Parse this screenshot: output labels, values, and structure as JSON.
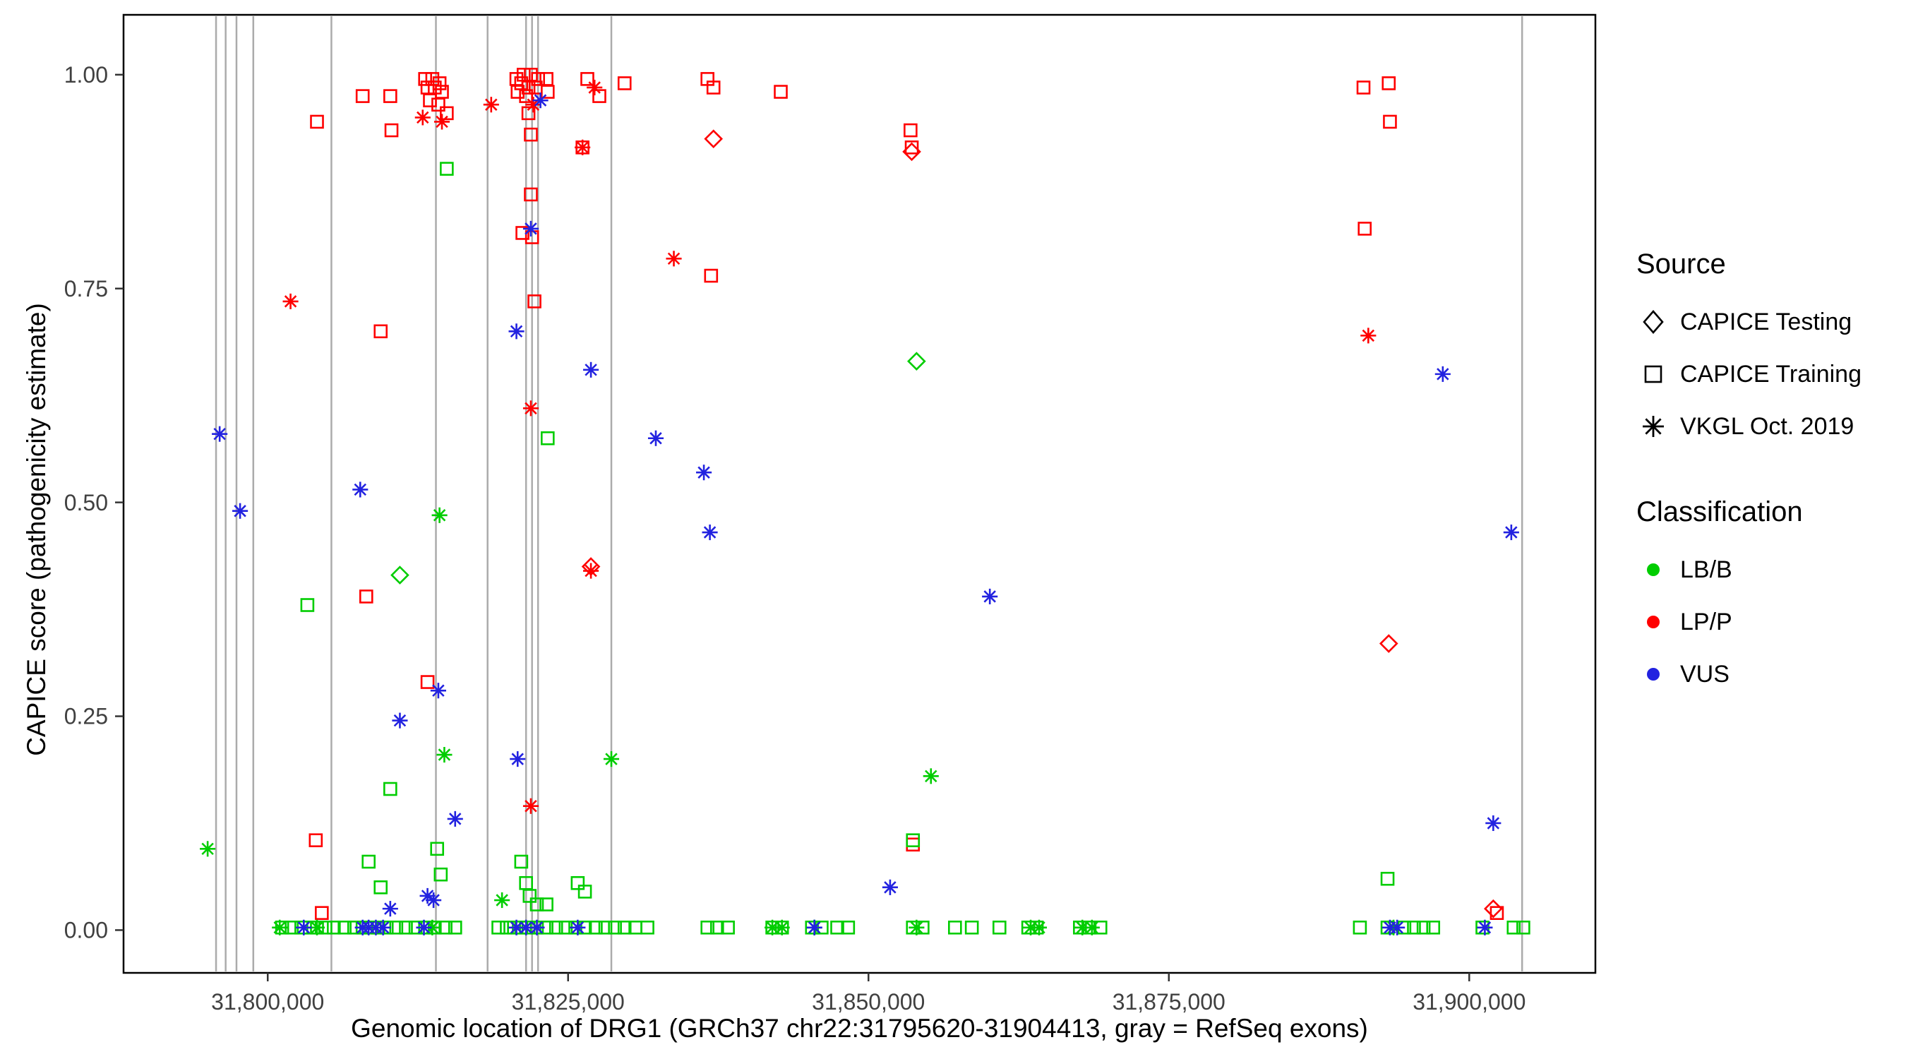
{
  "legend": {
    "source": {
      "title": "Source",
      "items": [
        {
          "label": "CAPICE Testing",
          "shape": "diamond"
        },
        {
          "label": "CAPICE Training",
          "shape": "square"
        },
        {
          "label": "VKGL Oct. 2019",
          "shape": "asterisk"
        }
      ]
    },
    "classification": {
      "title": "Classification",
      "items": [
        {
          "label": "LB/B",
          "color": "#00CD00"
        },
        {
          "label": "LP/P",
          "color": "#FF0000"
        },
        {
          "label": "VUS",
          "color": "#2222E0"
        }
      ]
    }
  },
  "chart_data": {
    "type": "scatter",
    "title": "",
    "xlabel": "Genomic location of DRG1 (GRCh37 chr22:31795620-31904413, gray = RefSeq exons)",
    "ylabel": "CAPICE score (pathogenicity estimate)",
    "xlim": [
      31788000,
      31910500
    ],
    "ylim": [
      -0.05,
      1.07
    ],
    "grid": false,
    "legend_position": "right",
    "x_ticks": [
      {
        "value": 31800000,
        "label": "31,800,000"
      },
      {
        "value": 31825000,
        "label": "31,825,000"
      },
      {
        "value": 31850000,
        "label": "31,850,000"
      },
      {
        "value": 31875000,
        "label": "31,875,000"
      },
      {
        "value": 31900000,
        "label": "31,900,000"
      }
    ],
    "y_ticks": [
      {
        "value": 0.0,
        "label": "0.00"
      },
      {
        "value": 0.25,
        "label": "0.25"
      },
      {
        "value": 0.5,
        "label": "0.50"
      },
      {
        "value": 0.75,
        "label": "0.75"
      },
      {
        "value": 1.0,
        "label": "1.00"
      }
    ],
    "exon_color": "#ABABAB",
    "exons": [
      31795700,
      31796500,
      31797400,
      31798800,
      31805300,
      31814000,
      31818300,
      31821500,
      31822000,
      31822500,
      31828600,
      31904400
    ],
    "classification_codes": {
      "B": "LB/B",
      "P": "LP/P",
      "V": "VUS"
    },
    "source_codes": {
      "d": "CAPICE Testing",
      "s": "CAPICE Training",
      "a": "VKGL Oct. 2019"
    },
    "colors": {
      "B": "#00CD00",
      "P": "#FF0000",
      "V": "#2222E0"
    },
    "shapes": {
      "d": "diamond",
      "s": "square",
      "a": "asterisk"
    },
    "point_format": [
      "x",
      "y",
      "classification_code",
      "source_code"
    ],
    "points": [
      [
        31804100,
        0.945,
        "P",
        "s"
      ],
      [
        31807900,
        0.975,
        "P",
        "s"
      ],
      [
        31810200,
        0.975,
        "P",
        "s"
      ],
      [
        31810300,
        0.935,
        "P",
        "s"
      ],
      [
        31813100,
        0.995,
        "P",
        "s"
      ],
      [
        31813700,
        0.995,
        "P",
        "s"
      ],
      [
        31814300,
        0.99,
        "P",
        "s"
      ],
      [
        31813300,
        0.985,
        "P",
        "s"
      ],
      [
        31813900,
        0.985,
        "P",
        "s"
      ],
      [
        31814500,
        0.98,
        "P",
        "s"
      ],
      [
        31813500,
        0.97,
        "P",
        "s"
      ],
      [
        31814200,
        0.965,
        "P",
        "s"
      ],
      [
        31814900,
        0.955,
        "P",
        "s"
      ],
      [
        31820700,
        0.995,
        "P",
        "s"
      ],
      [
        31821300,
        1.0,
        "P",
        "s"
      ],
      [
        31821900,
        1.0,
        "P",
        "s"
      ],
      [
        31822500,
        0.995,
        "P",
        "s"
      ],
      [
        31823200,
        0.995,
        "P",
        "s"
      ],
      [
        31821100,
        0.99,
        "P",
        "s"
      ],
      [
        31821700,
        0.985,
        "P",
        "s"
      ],
      [
        31822300,
        0.985,
        "P",
        "s"
      ],
      [
        31820800,
        0.98,
        "P",
        "s"
      ],
      [
        31821500,
        0.975,
        "P",
        "s"
      ],
      [
        31823300,
        0.98,
        "P",
        "s"
      ],
      [
        31821700,
        0.955,
        "P",
        "s"
      ],
      [
        31821900,
        0.93,
        "P",
        "s"
      ],
      [
        31821900,
        0.86,
        "P",
        "s"
      ],
      [
        31821200,
        0.815,
        "P",
        "s"
      ],
      [
        31822000,
        0.81,
        "P",
        "s"
      ],
      [
        31822200,
        0.735,
        "P",
        "s"
      ],
      [
        31826200,
        0.915,
        "P",
        "s"
      ],
      [
        31826600,
        0.995,
        "P",
        "s"
      ],
      [
        31827600,
        0.975,
        "P",
        "s"
      ],
      [
        31829700,
        0.99,
        "P",
        "s"
      ],
      [
        31836600,
        0.995,
        "P",
        "s"
      ],
      [
        31837100,
        0.985,
        "P",
        "s"
      ],
      [
        31836900,
        0.765,
        "P",
        "s"
      ],
      [
        31842700,
        0.98,
        "P",
        "s"
      ],
      [
        31853500,
        0.935,
        "P",
        "s"
      ],
      [
        31853600,
        0.915,
        "P",
        "s"
      ],
      [
        31891200,
        0.985,
        "P",
        "s"
      ],
      [
        31893300,
        0.99,
        "P",
        "s"
      ],
      [
        31893400,
        0.945,
        "P",
        "s"
      ],
      [
        31891300,
        0.82,
        "P",
        "s"
      ],
      [
        31809400,
        0.7,
        "P",
        "s"
      ],
      [
        31808200,
        0.39,
        "P",
        "s"
      ],
      [
        31813300,
        0.29,
        "P",
        "s"
      ],
      [
        31804000,
        0.105,
        "P",
        "s"
      ],
      [
        31804500,
        0.02,
        "P",
        "s"
      ],
      [
        31853700,
        0.1,
        "P",
        "s"
      ],
      [
        31902300,
        0.02,
        "P",
        "s"
      ],
      [
        31837100,
        0.925,
        "P",
        "d"
      ],
      [
        31853600,
        0.91,
        "P",
        "d"
      ],
      [
        31826900,
        0.425,
        "P",
        "d"
      ],
      [
        31893300,
        0.335,
        "P",
        "d"
      ],
      [
        31902000,
        0.025,
        "P",
        "d"
      ],
      [
        31801900,
        0.735,
        "P",
        "a"
      ],
      [
        31812900,
        0.95,
        "P",
        "a"
      ],
      [
        31814500,
        0.945,
        "P",
        "a"
      ],
      [
        31818600,
        0.965,
        "P",
        "a"
      ],
      [
        31822100,
        0.965,
        "P",
        "a"
      ],
      [
        31826200,
        0.915,
        "P",
        "a"
      ],
      [
        31827200,
        0.985,
        "P",
        "a"
      ],
      [
        31833800,
        0.785,
        "P",
        "a"
      ],
      [
        31821900,
        0.61,
        "P",
        "a"
      ],
      [
        31826900,
        0.42,
        "P",
        "a"
      ],
      [
        31821900,
        0.145,
        "P",
        "a"
      ],
      [
        31891600,
        0.695,
        "P",
        "a"
      ],
      [
        31814900,
        0.89,
        "B",
        "s"
      ],
      [
        31823300,
        0.575,
        "B",
        "s"
      ],
      [
        31803300,
        0.38,
        "B",
        "s"
      ],
      [
        31810200,
        0.165,
        "B",
        "s"
      ],
      [
        31808400,
        0.08,
        "B",
        "s"
      ],
      [
        31809400,
        0.05,
        "B",
        "s"
      ],
      [
        31814100,
        0.095,
        "B",
        "s"
      ],
      [
        31814400,
        0.065,
        "B",
        "s"
      ],
      [
        31821100,
        0.08,
        "B",
        "s"
      ],
      [
        31821500,
        0.055,
        "B",
        "s"
      ],
      [
        31821800,
        0.04,
        "B",
        "s"
      ],
      [
        31822400,
        0.03,
        "B",
        "s"
      ],
      [
        31823200,
        0.03,
        "B",
        "s"
      ],
      [
        31825800,
        0.055,
        "B",
        "s"
      ],
      [
        31826400,
        0.045,
        "B",
        "s"
      ],
      [
        31853700,
        0.105,
        "B",
        "s"
      ],
      [
        31893200,
        0.06,
        "B",
        "s"
      ],
      [
        31801200,
        0.003,
        "B",
        "s"
      ],
      [
        31802000,
        0.003,
        "B",
        "s"
      ],
      [
        31802800,
        0.003,
        "B",
        "s"
      ],
      [
        31803500,
        0.003,
        "B",
        "s"
      ],
      [
        31804100,
        0.003,
        "B",
        "s"
      ],
      [
        31804800,
        0.003,
        "B",
        "s"
      ],
      [
        31805500,
        0.003,
        "B",
        "s"
      ],
      [
        31806400,
        0.003,
        "B",
        "s"
      ],
      [
        31807200,
        0.003,
        "B",
        "s"
      ],
      [
        31807900,
        0.003,
        "B",
        "s"
      ],
      [
        31808600,
        0.003,
        "B",
        "s"
      ],
      [
        31809200,
        0.003,
        "B",
        "s"
      ],
      [
        31809900,
        0.003,
        "B",
        "s"
      ],
      [
        31810700,
        0.003,
        "B",
        "s"
      ],
      [
        31811500,
        0.003,
        "B",
        "s"
      ],
      [
        31812300,
        0.003,
        "B",
        "s"
      ],
      [
        31813100,
        0.003,
        "B",
        "s"
      ],
      [
        31813900,
        0.003,
        "B",
        "s"
      ],
      [
        31814800,
        0.003,
        "B",
        "s"
      ],
      [
        31815600,
        0.003,
        "B",
        "s"
      ],
      [
        31819200,
        0.003,
        "B",
        "s"
      ],
      [
        31819900,
        0.003,
        "B",
        "s"
      ],
      [
        31820500,
        0.003,
        "B",
        "s"
      ],
      [
        31821100,
        0.003,
        "B",
        "s"
      ],
      [
        31821700,
        0.003,
        "B",
        "s"
      ],
      [
        31822400,
        0.003,
        "B",
        "s"
      ],
      [
        31823200,
        0.003,
        "B",
        "s"
      ],
      [
        31824000,
        0.003,
        "B",
        "s"
      ],
      [
        31824800,
        0.003,
        "B",
        "s"
      ],
      [
        31825600,
        0.003,
        "B",
        "s"
      ],
      [
        31826400,
        0.003,
        "B",
        "s"
      ],
      [
        31827300,
        0.003,
        "B",
        "s"
      ],
      [
        31828100,
        0.003,
        "B",
        "s"
      ],
      [
        31828900,
        0.003,
        "B",
        "s"
      ],
      [
        31829700,
        0.003,
        "B",
        "s"
      ],
      [
        31830600,
        0.003,
        "B",
        "s"
      ],
      [
        31831600,
        0.003,
        "B",
        "s"
      ],
      [
        31836600,
        0.003,
        "B",
        "s"
      ],
      [
        31837400,
        0.003,
        "B",
        "s"
      ],
      [
        31838300,
        0.003,
        "B",
        "s"
      ],
      [
        31842000,
        0.003,
        "B",
        "s"
      ],
      [
        31842800,
        0.003,
        "B",
        "s"
      ],
      [
        31845300,
        0.003,
        "B",
        "s"
      ],
      [
        31846100,
        0.003,
        "B",
        "s"
      ],
      [
        31847400,
        0.003,
        "B",
        "s"
      ],
      [
        31848300,
        0.003,
        "B",
        "s"
      ],
      [
        31853700,
        0.003,
        "B",
        "s"
      ],
      [
        31854500,
        0.003,
        "B",
        "s"
      ],
      [
        31857200,
        0.003,
        "B",
        "s"
      ],
      [
        31858600,
        0.003,
        "B",
        "s"
      ],
      [
        31860900,
        0.003,
        "B",
        "s"
      ],
      [
        31863300,
        0.003,
        "B",
        "s"
      ],
      [
        31864000,
        0.003,
        "B",
        "s"
      ],
      [
        31867600,
        0.003,
        "B",
        "s"
      ],
      [
        31868400,
        0.003,
        "B",
        "s"
      ],
      [
        31869300,
        0.003,
        "B",
        "s"
      ],
      [
        31890900,
        0.003,
        "B",
        "s"
      ],
      [
        31893200,
        0.003,
        "B",
        "s"
      ],
      [
        31894600,
        0.003,
        "B",
        "s"
      ],
      [
        31895400,
        0.003,
        "B",
        "s"
      ],
      [
        31896200,
        0.003,
        "B",
        "s"
      ],
      [
        31897000,
        0.003,
        "B",
        "s"
      ],
      [
        31901100,
        0.003,
        "B",
        "s"
      ],
      [
        31903700,
        0.003,
        "B",
        "s"
      ],
      [
        31904500,
        0.003,
        "B",
        "s"
      ],
      [
        31811000,
        0.415,
        "B",
        "d"
      ],
      [
        31854000,
        0.665,
        "B",
        "d"
      ],
      [
        31795000,
        0.095,
        "B",
        "a"
      ],
      [
        31814300,
        0.485,
        "B",
        "a"
      ],
      [
        31814700,
        0.205,
        "B",
        "a"
      ],
      [
        31828600,
        0.2,
        "B",
        "a"
      ],
      [
        31819500,
        0.035,
        "B",
        "a"
      ],
      [
        31855200,
        0.18,
        "B",
        "a"
      ],
      [
        31801000,
        0.003,
        "B",
        "a"
      ],
      [
        31804100,
        0.003,
        "B",
        "a"
      ],
      [
        31813700,
        0.003,
        "B",
        "a"
      ],
      [
        31842000,
        0.003,
        "B",
        "a"
      ],
      [
        31842800,
        0.003,
        "B",
        "a"
      ],
      [
        31845500,
        0.003,
        "B",
        "a"
      ],
      [
        31854000,
        0.003,
        "B",
        "a"
      ],
      [
        31863500,
        0.003,
        "B",
        "a"
      ],
      [
        31864200,
        0.003,
        "B",
        "a"
      ],
      [
        31867800,
        0.003,
        "B",
        "a"
      ],
      [
        31868600,
        0.003,
        "B",
        "a"
      ],
      [
        31893700,
        0.003,
        "B",
        "a"
      ],
      [
        31796000,
        0.58,
        "V",
        "a"
      ],
      [
        31797700,
        0.49,
        "V",
        "a"
      ],
      [
        31807700,
        0.515,
        "V",
        "a"
      ],
      [
        31811000,
        0.245,
        "V",
        "a"
      ],
      [
        31814200,
        0.28,
        "V",
        "a"
      ],
      [
        31815600,
        0.13,
        "V",
        "a"
      ],
      [
        31813300,
        0.04,
        "V",
        "a"
      ],
      [
        31813800,
        0.035,
        "V",
        "a"
      ],
      [
        31810200,
        0.025,
        "V",
        "a"
      ],
      [
        31820800,
        0.2,
        "V",
        "a"
      ],
      [
        31820700,
        0.7,
        "V",
        "a"
      ],
      [
        31821900,
        0.82,
        "V",
        "a"
      ],
      [
        31822700,
        0.97,
        "V",
        "a"
      ],
      [
        31826900,
        0.655,
        "V",
        "a"
      ],
      [
        31832300,
        0.575,
        "V",
        "a"
      ],
      [
        31836300,
        0.535,
        "V",
        "a"
      ],
      [
        31836800,
        0.465,
        "V",
        "a"
      ],
      [
        31860100,
        0.39,
        "V",
        "a"
      ],
      [
        31851800,
        0.05,
        "V",
        "a"
      ],
      [
        31897800,
        0.65,
        "V",
        "a"
      ],
      [
        31903500,
        0.465,
        "V",
        "a"
      ],
      [
        31902000,
        0.125,
        "V",
        "a"
      ],
      [
        31803000,
        0.003,
        "V",
        "a"
      ],
      [
        31807900,
        0.003,
        "V",
        "a"
      ],
      [
        31808400,
        0.003,
        "V",
        "a"
      ],
      [
        31809000,
        0.003,
        "V",
        "a"
      ],
      [
        31809600,
        0.003,
        "V",
        "a"
      ],
      [
        31813000,
        0.003,
        "V",
        "a"
      ],
      [
        31820700,
        0.003,
        "V",
        "a"
      ],
      [
        31821500,
        0.003,
        "V",
        "a"
      ],
      [
        31822400,
        0.003,
        "V",
        "a"
      ],
      [
        31825800,
        0.003,
        "V",
        "a"
      ],
      [
        31845500,
        0.003,
        "V",
        "a"
      ],
      [
        31893400,
        0.003,
        "V",
        "a"
      ],
      [
        31894000,
        0.003,
        "V",
        "a"
      ],
      [
        31901300,
        0.003,
        "V",
        "a"
      ]
    ]
  }
}
